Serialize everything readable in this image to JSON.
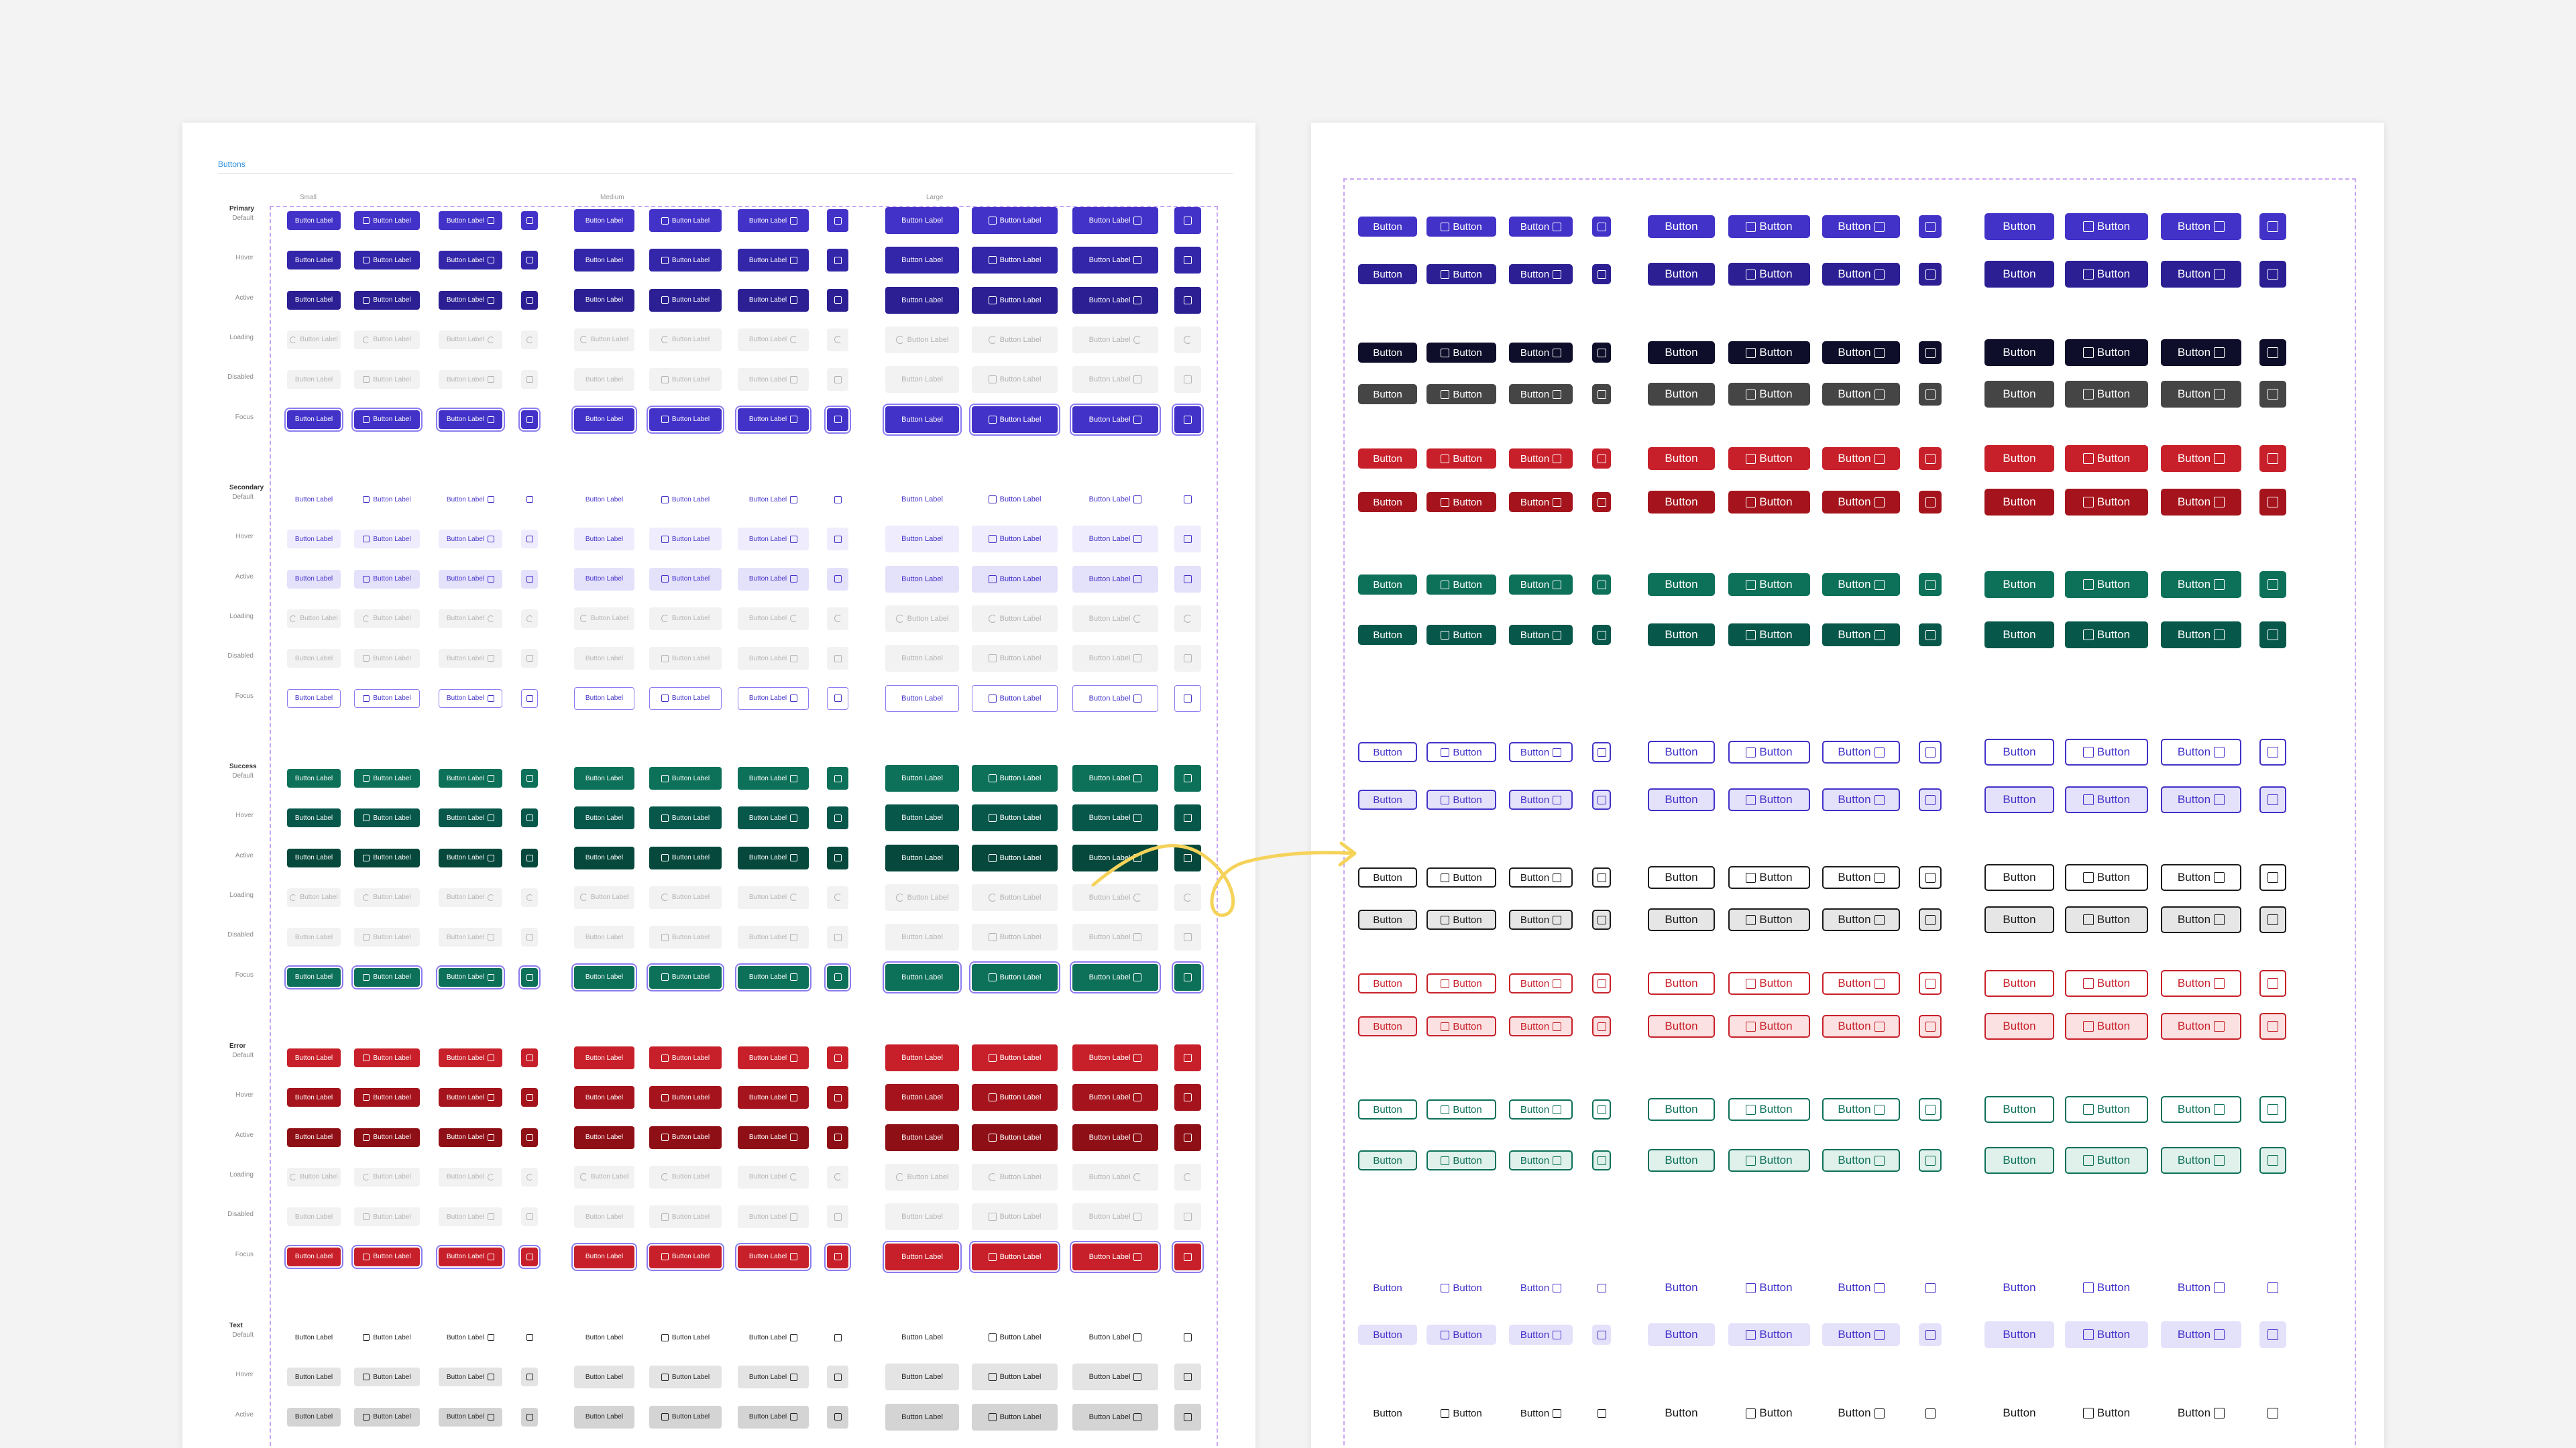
{
  "page": {
    "title": "Buttons"
  },
  "size_labels": [
    "Small",
    "Medium",
    "Large"
  ],
  "button_text": {
    "label": "Button Label",
    "short": "Button"
  },
  "icons": {
    "square": "square-icon",
    "spinner": "spinner-icon"
  },
  "groups": [
    {
      "key": "primary",
      "label": "Primary",
      "states": [
        "Default",
        "Hover",
        "Active",
        "Loading",
        "Disabled",
        "Focus"
      ]
    },
    {
      "key": "secondary",
      "label": "Secondary",
      "states": [
        "Default",
        "Hover",
        "Active",
        "Loading",
        "Disabled",
        "Focus"
      ]
    },
    {
      "key": "success",
      "label": "Success",
      "states": [
        "Default",
        "Hover",
        "Active",
        "Loading",
        "Disabled",
        "Focus"
      ]
    },
    {
      "key": "error",
      "label": "Error",
      "states": [
        "Default",
        "Hover",
        "Active",
        "Loading",
        "Disabled",
        "Focus"
      ]
    },
    {
      "key": "text",
      "label": "Text",
      "states": [
        "Default",
        "Hover",
        "Active"
      ]
    }
  ],
  "colors": {
    "primary": "#4232c8",
    "primary_hover": "#3326a8",
    "primary_active": "#2b1f93",
    "dark": "#0e0d2a",
    "dark_hover": "#454545",
    "error": "#c8202a",
    "error_hover": "#a5141c",
    "success": "#0d7059",
    "success_hover": "#07574a",
    "secondary_bg": "#e4e1fb",
    "disabled_bg": "#f2f2f2",
    "disabled_text": "#b3b3b3",
    "focus_ring": "#8b7cf0",
    "text_hover_bg": "#e4e4e4",
    "text_active_bg": "#d4d4d4",
    "annotation_arrow": "#f5d35a",
    "dashed_frame": "#c9a6f5"
  },
  "right_rows": [
    {
      "style": "primary"
    },
    {
      "style": "primary-hover"
    },
    {
      "style": "dark"
    },
    {
      "style": "dark-hover"
    },
    {
      "style": "error"
    },
    {
      "style": "error-hover"
    },
    {
      "style": "success"
    },
    {
      "style": "success-hover"
    },
    {
      "style": "outline-primary"
    },
    {
      "style": "outline-primary-hover"
    },
    {
      "style": "outline-dark"
    },
    {
      "style": "outline-dark-hover"
    },
    {
      "style": "outline-error"
    },
    {
      "style": "outline-error-hover"
    },
    {
      "style": "outline-success"
    },
    {
      "style": "outline-success-hover"
    },
    {
      "style": "text-primary"
    },
    {
      "style": "text-primary-hover"
    },
    {
      "style": "text-dark"
    }
  ]
}
